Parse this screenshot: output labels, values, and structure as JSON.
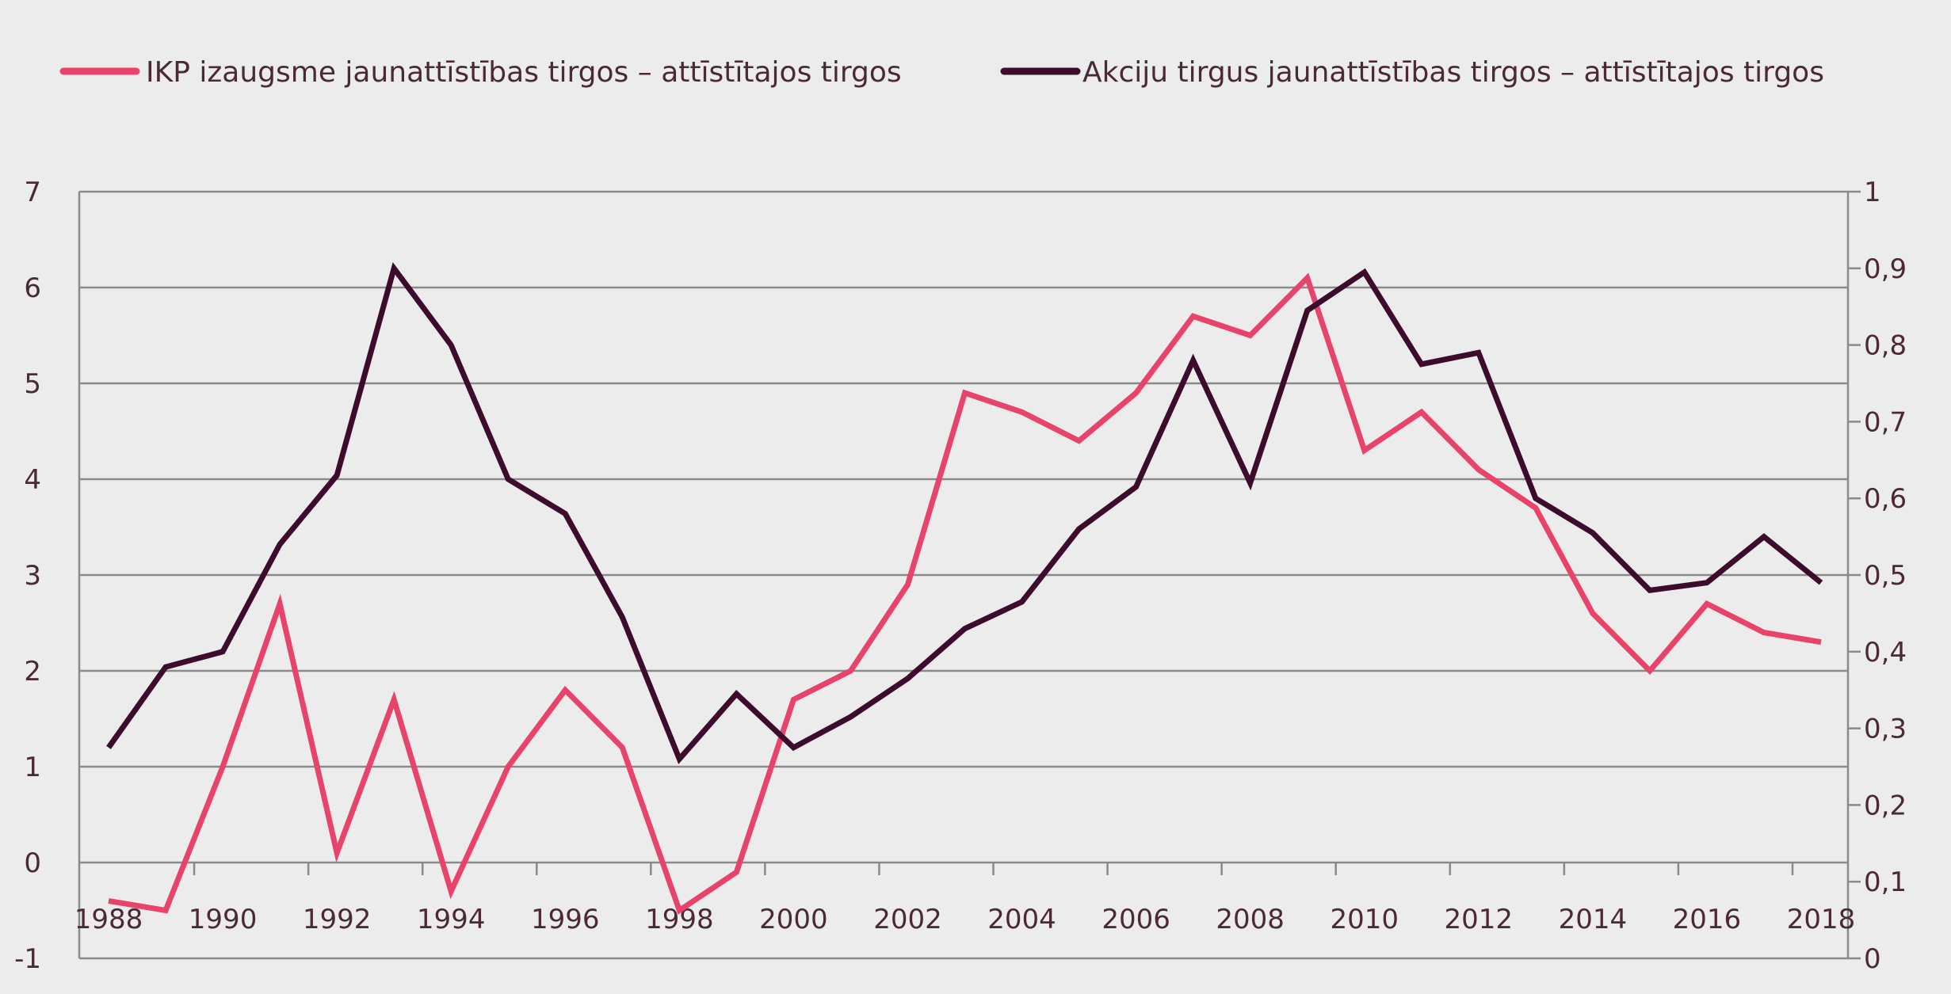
{
  "chart_data": {
    "type": "line",
    "title": "",
    "xlabel": "",
    "ylabel": "",
    "x": [
      1988,
      1989,
      1990,
      1991,
      1992,
      1993,
      1994,
      1995,
      1996,
      1997,
      1998,
      1999,
      2000,
      2001,
      2002,
      2003,
      2004,
      2005,
      2006,
      2007,
      2008,
      2009,
      2010,
      2011,
      2012,
      2013,
      2014,
      2015,
      2016,
      2017,
      2018
    ],
    "x_tick_labels": [
      "1988",
      "1990",
      "1992",
      "1994",
      "1996",
      "1998",
      "2000",
      "2002",
      "2004",
      "2006",
      "2008",
      "2010",
      "2012",
      "2014",
      "2016",
      "2018"
    ],
    "ylim_left": [
      -1,
      7
    ],
    "y_ticks_left": [
      "-1",
      "0",
      "1",
      "2",
      "3",
      "4",
      "5",
      "6",
      "7"
    ],
    "ylim_right": [
      0,
      1
    ],
    "y_ticks_right": [
      "0",
      "0,1",
      "0,2",
      "0,3",
      "0,4",
      "0,5",
      "0,6",
      "0,7",
      "0,8",
      "0,9",
      "1"
    ],
    "grid": true,
    "legend_position": "top",
    "series": [
      {
        "name": "IKP izaugsme jaunattīstības tirgos – attīstītajos tirgos",
        "axis": "left",
        "color": "#e8436a",
        "values": [
          -0.4,
          -0.5,
          1.0,
          2.7,
          0.1,
          1.7,
          -0.3,
          1.0,
          1.8,
          1.2,
          -0.5,
          -0.1,
          1.7,
          2.0,
          2.9,
          4.9,
          4.7,
          4.4,
          4.9,
          5.7,
          5.5,
          6.1,
          4.3,
          4.7,
          4.1,
          3.7,
          2.6,
          2.0,
          2.7,
          2.4,
          2.3
        ]
      },
      {
        "name": "Akciju tirgus jaunattīstības tirgos – attīstītajos tirgos",
        "axis": "right",
        "color": "#3d0c2c",
        "values": [
          0.275,
          0.38,
          0.4,
          0.54,
          0.63,
          0.9,
          0.8,
          0.625,
          0.58,
          0.445,
          0.26,
          0.345,
          0.275,
          0.315,
          0.365,
          0.43,
          0.465,
          0.56,
          0.615,
          0.78,
          0.62,
          0.845,
          0.895,
          0.775,
          0.79,
          0.6,
          0.555,
          0.48,
          0.49,
          0.55,
          0.49
        ]
      }
    ]
  }
}
